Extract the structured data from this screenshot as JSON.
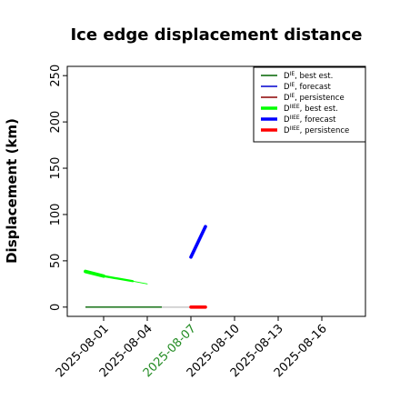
{
  "chart_data": {
    "type": "line",
    "title": "Ice edge displacement distance",
    "ylabel": "Displacement (km)",
    "xlabel": "",
    "ylim": [
      -10,
      260
    ],
    "xlim": [
      "2025-07-29T12:00",
      "2025-08-19T00:00"
    ],
    "yticks": [
      0,
      50,
      100,
      150,
      200,
      250
    ],
    "xticks": [
      {
        "label": "2025-08-01",
        "date": "2025-08-01",
        "color": "#000000"
      },
      {
        "label": "2025-08-04",
        "date": "2025-08-04",
        "color": "#000000"
      },
      {
        "label": "2025-08-07",
        "date": "2025-08-07",
        "color": "#228b22"
      },
      {
        "label": "2025-08-10",
        "date": "2025-08-10",
        "color": "#000000"
      },
      {
        "label": "2025-08-13",
        "date": "2025-08-13",
        "color": "#000000"
      },
      {
        "label": "2025-08-16",
        "date": "2025-08-16",
        "color": "#000000"
      }
    ],
    "grid": false,
    "legend_position": "top-right",
    "series": [
      {
        "name": "D^IE, best est.",
        "legend_main": "D",
        "legend_sup": "IE",
        "legend_rest": ", best est.",
        "color": "#006400",
        "width": "thin",
        "points": [
          [
            "2025-07-30T18:00",
            0
          ],
          [
            "2025-08-05T00:00",
            0
          ]
        ]
      },
      {
        "name": "D^IE, forecast",
        "legend_main": "D",
        "legend_sup": "IE",
        "legend_rest": ", forecast",
        "color": "#0000cd",
        "width": "thin",
        "points": []
      },
      {
        "name": "D^IE, persistence",
        "legend_main": "D",
        "legend_sup": "IE",
        "legend_rest": ", persistence",
        "color": "#8b0000",
        "width": "thin",
        "points": [
          [
            "2025-08-07T00:00",
            0
          ],
          [
            "2025-08-08T00:00",
            0
          ]
        ]
      },
      {
        "name": "D^IIEE, best est.",
        "legend_main": "D",
        "legend_sup": "IIEE",
        "legend_rest": ", best est.",
        "color": "#00ff00",
        "width": "varying",
        "points": [
          [
            "2025-07-30T18:00",
            38.5
          ],
          [
            "2025-08-01T00:00",
            33.5
          ],
          [
            "2025-08-03T00:00",
            28
          ],
          [
            "2025-08-04T00:00",
            25
          ]
        ]
      },
      {
        "name": "D^IIEE, forecast",
        "legend_main": "D",
        "legend_sup": "IIEE",
        "legend_rest": ", forecast",
        "color": "#0000ff",
        "width": "thick",
        "points": [
          [
            "2025-08-07T00:00",
            54
          ],
          [
            "2025-08-08T00:00",
            87
          ]
        ]
      },
      {
        "name": "D^IIEE, persistence",
        "legend_main": "D",
        "legend_sup": "IIEE",
        "legend_rest": ", persistence",
        "color": "#ff0000",
        "width": "thick",
        "points": [
          [
            "2025-08-07T00:00",
            0
          ],
          [
            "2025-08-08T00:00",
            0
          ]
        ]
      }
    ],
    "reference_line": {
      "color": "#c8c8c8",
      "points": [
        [
          "2025-08-05T00:00",
          0
        ],
        [
          "2025-08-07T00:00",
          0
        ]
      ]
    }
  }
}
